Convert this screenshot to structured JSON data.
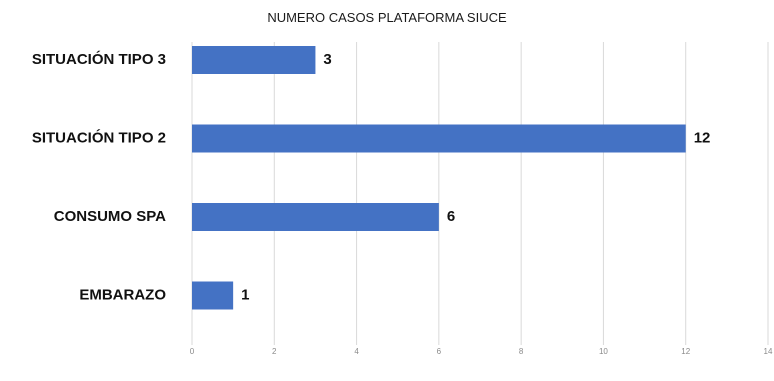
{
  "chart_data": {
    "type": "bar",
    "orientation": "horizontal",
    "title": "NUMERO CASOS PLATAFORMA SIUCE",
    "categories": [
      "SITUACIÓN TIPO 3",
      "SITUACIÓN TIPO 2",
      "CONSUMO SPA",
      "EMBARAZO"
    ],
    "values": [
      3,
      12,
      6,
      1
    ],
    "xlim": [
      0,
      14
    ],
    "xticks": [
      0,
      2,
      4,
      6,
      8,
      10,
      12,
      14
    ],
    "grid": true,
    "legend": "none",
    "bar_color": "#4472c4"
  }
}
